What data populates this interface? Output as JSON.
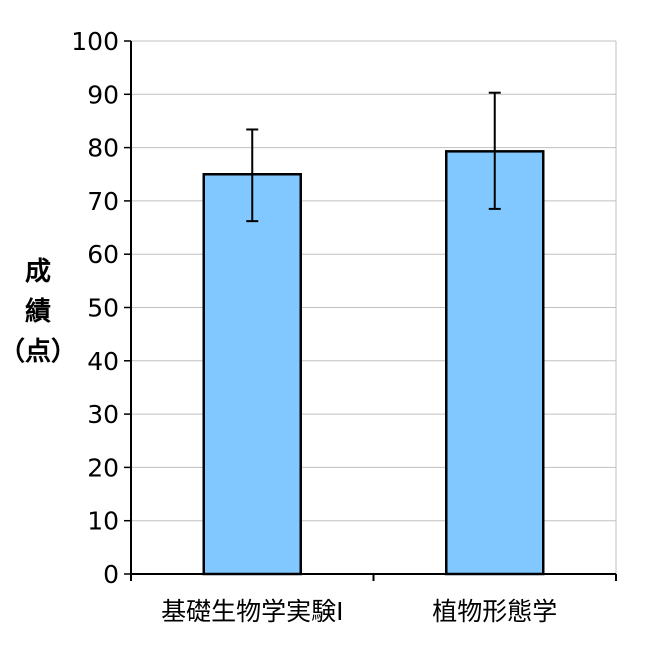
{
  "chart_data": {
    "type": "bar",
    "title": "",
    "xlabel": "",
    "ylabel": [
      "成",
      "績",
      "（点）"
    ],
    "categories": [
      "基礎生物学実験I",
      "植物形態学"
    ],
    "values": [
      75,
      79.3
    ],
    "error_upper": [
      83.4,
      90.3
    ],
    "error_lower": [
      66.2,
      68.5
    ],
    "ylim": [
      0,
      100
    ],
    "yticks": [
      0,
      10,
      20,
      30,
      40,
      50,
      60,
      70,
      80,
      90,
      100
    ],
    "grid": true,
    "legend": "none",
    "colors": {
      "bar_fill": "#80c8ff",
      "bar_stroke": "#000000",
      "grid": "#c0c0c0",
      "axis": "#000000"
    }
  }
}
